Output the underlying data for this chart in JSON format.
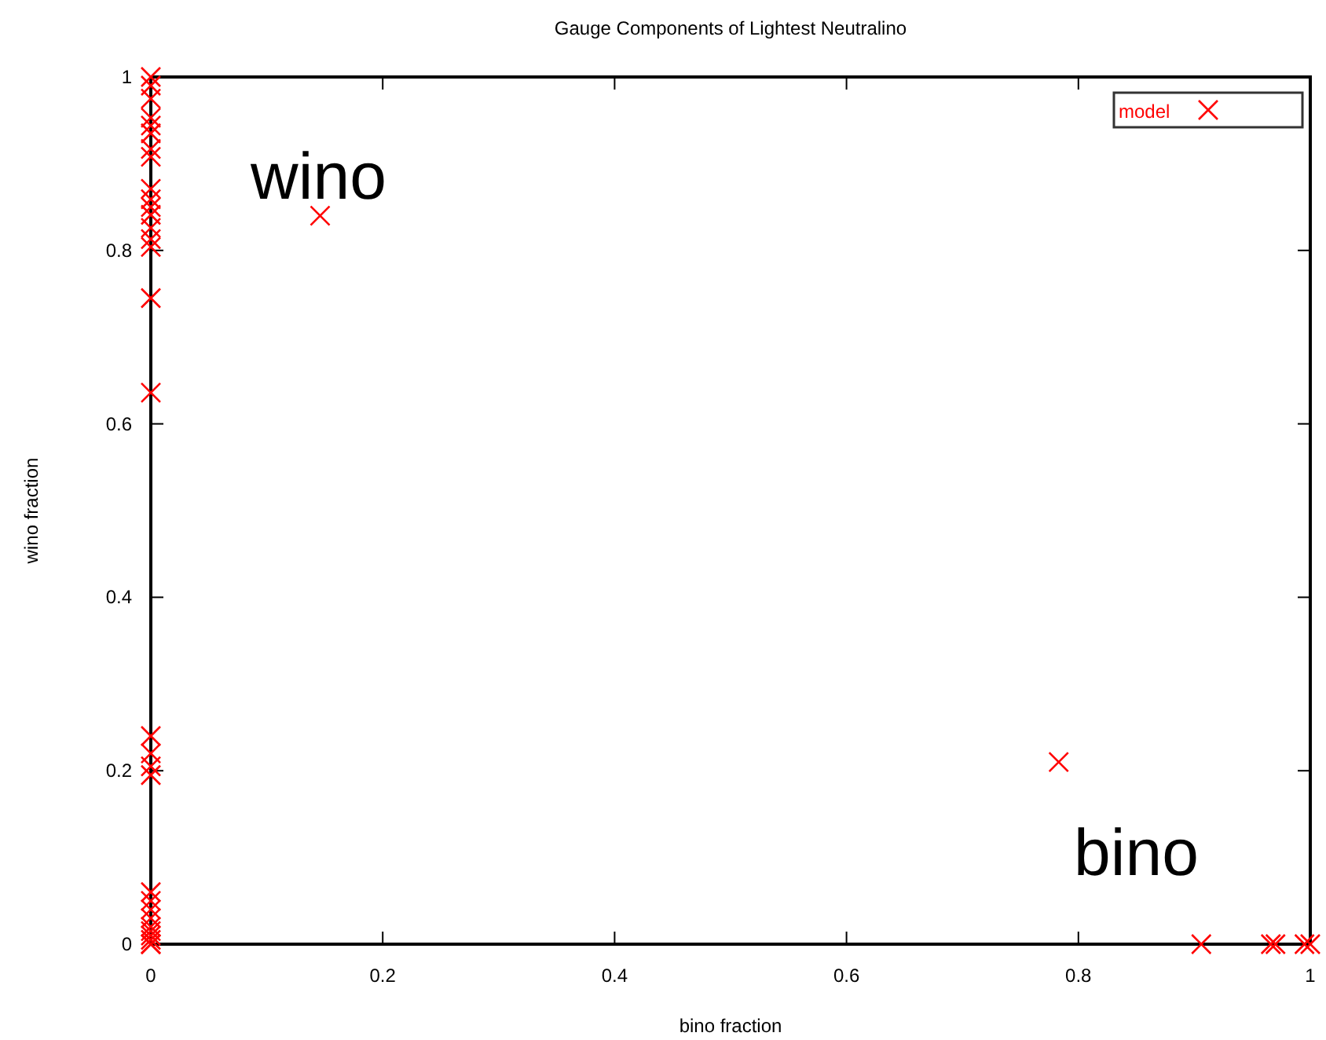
{
  "chart_data": {
    "type": "scatter",
    "title": "Gauge Components of Lightest Neutralino",
    "xlabel": "bino fraction",
    "ylabel": "wino fraction",
    "x": [
      0,
      0,
      0,
      0,
      0,
      0,
      0,
      0,
      0,
      0,
      0,
      0,
      0,
      0,
      0,
      0,
      0,
      0,
      0,
      0,
      0,
      0,
      0,
      0,
      0,
      0,
      0,
      0,
      0,
      0,
      0,
      0.146,
      0.783,
      0.906,
      0.966,
      0.97,
      0.995,
      1.0
    ],
    "series": [
      {
        "name": "model",
        "color": "#ff0000",
        "values": [
          1.0,
          0.99,
          0.975,
          0.953,
          0.944,
          0.935,
          0.917,
          0.908,
          0.871,
          0.859,
          0.85,
          0.841,
          0.826,
          0.813,
          0.804,
          0.745,
          0.636,
          0.24,
          0.22,
          0.205,
          0.195,
          0.06,
          0.05,
          0.04,
          0.03,
          0.02,
          0.015,
          0.01,
          0.005,
          0.0,
          0.0,
          0.84,
          0.21,
          0.0,
          0.0,
          0.0,
          0.0,
          0.0
        ]
      }
    ],
    "xlim": [
      0,
      1
    ],
    "ylim": [
      0,
      1
    ],
    "xticks": [
      0,
      0.2,
      0.4,
      0.6,
      0.8,
      1
    ],
    "yticks": [
      0,
      0.2,
      0.4,
      0.6,
      0.8,
      1
    ],
    "marker": "cross",
    "legend": "top right",
    "annotations": [
      "wino",
      "bino"
    ]
  }
}
